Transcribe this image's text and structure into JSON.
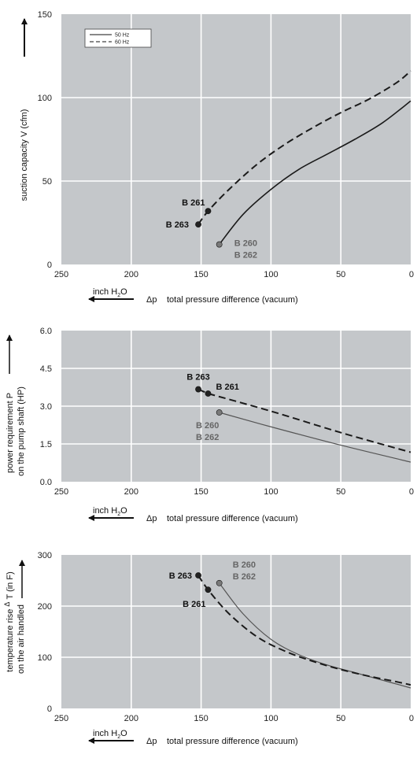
{
  "colors": {
    "plot_bg": "#c4c7ca",
    "grid": "#ffffff",
    "line_dark": "#1a1a1a",
    "line_gray": "#555555",
    "label_dark": "#111111",
    "label_gray": "#666666",
    "point_dark": "#222222",
    "point_gray": "#7a7a7a"
  },
  "chart_data": [
    {
      "type": "line",
      "ylabel": "suction capacity V (cfm)",
      "xlabel": "total pressure difference (vacuum)",
      "xlabel_symbol": "Δp",
      "unit_label": "inch H",
      "unit_sub": "2",
      "unit_tail": "O",
      "xlim": [
        250,
        0
      ],
      "ylim": [
        0,
        150
      ],
      "xticks": [
        "250",
        "200",
        "150",
        "100",
        "50",
        "0"
      ],
      "yticks": [
        "0",
        "50",
        "100",
        "150"
      ],
      "legend": {
        "position": "top-left",
        "entries": [
          {
            "label": "50 Hz",
            "style": "solid"
          },
          {
            "label": "60 Hz",
            "style": "dashed"
          }
        ]
      },
      "series": [
        {
          "name": "50 Hz",
          "style": "solid",
          "color": "line_dark",
          "x": [
            137,
            120,
            100,
            80,
            60,
            40,
            20,
            0
          ],
          "y": [
            12,
            30,
            45,
            57,
            66,
            75,
            85,
            98
          ]
        },
        {
          "name": "60 Hz",
          "style": "dashed",
          "color": "line_dark",
          "x": [
            152,
            145,
            130,
            110,
            90,
            70,
            50,
            30,
            10,
            0
          ],
          "y": [
            24,
            32,
            45,
            60,
            72,
            82,
            91,
            99,
            109,
            116
          ]
        }
      ],
      "points": [
        {
          "label": "B 261",
          "x": 145,
          "y": 32,
          "color": "point_dark",
          "text_color": "label_dark",
          "anchor": "end",
          "dx": -4,
          "dy": -7
        },
        {
          "label": "B 263",
          "x": 152,
          "y": 24,
          "color": "point_dark",
          "text_color": "label_dark",
          "anchor": "end",
          "dx": -12,
          "dy": 4
        },
        {
          "label": "B 260",
          "x": 137,
          "y": 12,
          "color": "point_gray",
          "text_color": "label_gray",
          "anchor": "start",
          "dx": 19,
          "dy": 2
        },
        {
          "label": "B 262",
          "x": 137,
          "y": 12,
          "color": "",
          "text_color": "label_gray",
          "anchor": "start",
          "dx": 19,
          "dy": 17
        }
      ]
    },
    {
      "type": "line",
      "ylabel": "power requirement P",
      "ylabel2": "on the pump shaft (HP)",
      "xlabel": "total pressure difference (vacuum)",
      "xlabel_symbol": "Δp",
      "unit_label": "inch H",
      "unit_sub": "2",
      "unit_tail": "O",
      "xlim": [
        250,
        0
      ],
      "ylim": [
        0,
        6
      ],
      "xticks": [
        "250",
        "200",
        "150",
        "100",
        "50",
        "0"
      ],
      "yticks": [
        "0.0",
        "1.5",
        "3.0",
        "4.5",
        "6.0"
      ],
      "series": [
        {
          "name": "50 Hz",
          "style": "solid",
          "color": "line_gray",
          "x": [
            137,
            100,
            50,
            0
          ],
          "y": [
            2.75,
            2.18,
            1.45,
            0.78
          ]
        },
        {
          "name": "60 Hz",
          "style": "dashed",
          "color": "line_dark",
          "x": [
            145,
            100,
            50,
            0
          ],
          "y": [
            3.5,
            2.8,
            1.95,
            1.17
          ]
        }
      ],
      "extra_segments": [
        {
          "x": [
            152,
            145
          ],
          "y": [
            3.67,
            3.5
          ],
          "style": "dashed",
          "color": "line_dark"
        }
      ],
      "points": [
        {
          "label": "B 263",
          "x": 152,
          "y": 3.67,
          "color": "point_dark",
          "text_color": "label_dark",
          "anchor": "middle",
          "dx": 0,
          "dy": -12
        },
        {
          "label": "B 261",
          "x": 145,
          "y": 3.5,
          "color": "point_dark",
          "text_color": "label_dark",
          "anchor": "start",
          "dx": 10,
          "dy": -5
        },
        {
          "label": "B 260",
          "x": 137,
          "y": 2.75,
          "color": "point_gray",
          "text_color": "label_gray",
          "anchor": "middle",
          "dx": -15,
          "dy": 20
        },
        {
          "label": "B 262",
          "x": 137,
          "y": 2.75,
          "color": "",
          "text_color": "label_gray",
          "anchor": "middle",
          "dx": -15,
          "dy": 35
        }
      ]
    },
    {
      "type": "line",
      "ylabel": "temperature rise",
      "ylabel_symbol": "Δ",
      "ylabel_T": "T",
      "ylabel_unit": "(in F)",
      "ylabel2": "on the air handled",
      "xlabel": "total pressure difference (vacuum)",
      "xlabel_symbol": "Δp",
      "unit_label": "inch H",
      "unit_sub": "2",
      "unit_tail": "O",
      "xlim": [
        250,
        0
      ],
      "ylim": [
        0,
        300
      ],
      "xticks": [
        "250",
        "200",
        "150",
        "100",
        "50",
        "0"
      ],
      "yticks": [
        "0",
        "100",
        "200",
        "300"
      ],
      "series": [
        {
          "name": "50 Hz",
          "style": "solid",
          "color": "line_gray",
          "x": [
            137,
            120,
            100,
            80,
            60,
            40,
            20,
            0
          ],
          "y": [
            245,
            185,
            135,
            105,
            85,
            70,
            55,
            40
          ]
        },
        {
          "name": "60 Hz",
          "style": "dashed",
          "color": "line_dark",
          "x": [
            152,
            145,
            130,
            110,
            90,
            70,
            50,
            30,
            10,
            0
          ],
          "y": [
            260,
            232,
            185,
            140,
            112,
            92,
            76,
            63,
            52,
            46
          ]
        }
      ],
      "points": [
        {
          "label": "B 263",
          "x": 152,
          "y": 260,
          "color": "point_dark",
          "text_color": "label_dark",
          "anchor": "end",
          "dx": -8,
          "dy": 4
        },
        {
          "label": "B 261",
          "x": 145,
          "y": 232,
          "color": "point_dark",
          "text_color": "label_dark",
          "anchor": "end",
          "dx": -3,
          "dy": 22
        },
        {
          "label": "B 260",
          "x": 137,
          "y": 245,
          "color": "point_gray",
          "text_color": "label_gray",
          "anchor": "start",
          "dx": 17,
          "dy": -20
        },
        {
          "label": "B 262",
          "x": 137,
          "y": 245,
          "color": "",
          "text_color": "label_gray",
          "anchor": "start",
          "dx": 17,
          "dy": -5
        }
      ]
    }
  ]
}
